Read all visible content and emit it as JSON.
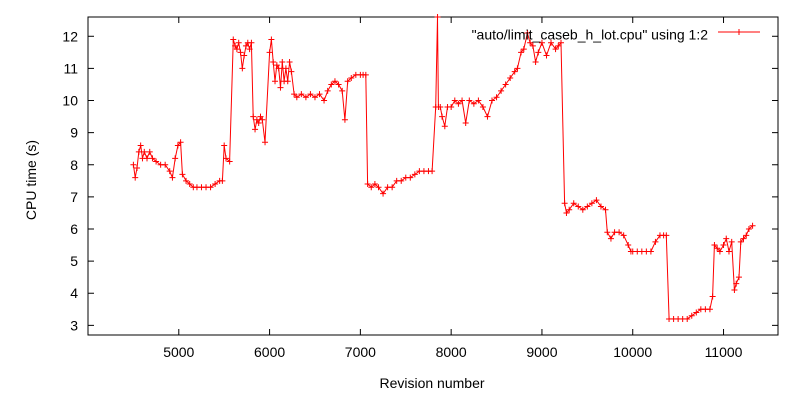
{
  "chart_data": {
    "type": "line",
    "title": "",
    "xlabel": "Revision number",
    "ylabel": "CPU time (s)",
    "xlim": [
      4000,
      11600
    ],
    "ylim": [
      2.7,
      12.6
    ],
    "x_ticks": [
      5000,
      6000,
      7000,
      8000,
      9000,
      10000,
      11000
    ],
    "y_ticks": [
      3,
      4,
      5,
      6,
      7,
      8,
      9,
      10,
      11,
      12
    ],
    "grid": false,
    "legend_position": "top-right",
    "series": [
      {
        "name": "\"auto/limit_caseb_h_lot.cpu\" using 1:2",
        "color": "#ff0000",
        "marker": "plus",
        "points": [
          [
            4500,
            8.0
          ],
          [
            4520,
            7.6
          ],
          [
            4540,
            7.9
          ],
          [
            4560,
            8.4
          ],
          [
            4580,
            8.6
          ],
          [
            4600,
            8.2
          ],
          [
            4620,
            8.4
          ],
          [
            4650,
            8.2
          ],
          [
            4680,
            8.4
          ],
          [
            4710,
            8.2
          ],
          [
            4750,
            8.1
          ],
          [
            4800,
            8.0
          ],
          [
            4850,
            8.0
          ],
          [
            4900,
            7.8
          ],
          [
            4930,
            7.6
          ],
          [
            4960,
            8.2
          ],
          [
            4990,
            8.6
          ],
          [
            5020,
            8.7
          ],
          [
            5040,
            7.7
          ],
          [
            5080,
            7.5
          ],
          [
            5120,
            7.4
          ],
          [
            5160,
            7.3
          ],
          [
            5200,
            7.3
          ],
          [
            5250,
            7.3
          ],
          [
            5300,
            7.3
          ],
          [
            5350,
            7.3
          ],
          [
            5400,
            7.4
          ],
          [
            5450,
            7.5
          ],
          [
            5480,
            7.5
          ],
          [
            5500,
            8.6
          ],
          [
            5520,
            8.2
          ],
          [
            5560,
            8.1
          ],
          [
            5600,
            11.9
          ],
          [
            5620,
            11.7
          ],
          [
            5640,
            11.6
          ],
          [
            5660,
            11.8
          ],
          [
            5680,
            11.5
          ],
          [
            5700,
            11.0
          ],
          [
            5720,
            11.4
          ],
          [
            5740,
            11.7
          ],
          [
            5760,
            11.8
          ],
          [
            5780,
            11.6
          ],
          [
            5800,
            11.8
          ],
          [
            5820,
            9.5
          ],
          [
            5840,
            9.1
          ],
          [
            5860,
            9.4
          ],
          [
            5880,
            9.3
          ],
          [
            5900,
            9.5
          ],
          [
            5920,
            9.4
          ],
          [
            5950,
            8.7
          ],
          [
            6000,
            11.5
          ],
          [
            6020,
            11.9
          ],
          [
            6040,
            11.2
          ],
          [
            6060,
            10.6
          ],
          [
            6080,
            11.1
          ],
          [
            6100,
            11.0
          ],
          [
            6120,
            10.4
          ],
          [
            6140,
            11.2
          ],
          [
            6160,
            10.6
          ],
          [
            6180,
            11.0
          ],
          [
            6200,
            10.6
          ],
          [
            6220,
            11.2
          ],
          [
            6240,
            10.9
          ],
          [
            6270,
            10.2
          ],
          [
            6300,
            10.1
          ],
          [
            6350,
            10.2
          ],
          [
            6400,
            10.1
          ],
          [
            6450,
            10.2
          ],
          [
            6500,
            10.1
          ],
          [
            6550,
            10.2
          ],
          [
            6600,
            10.0
          ],
          [
            6640,
            10.3
          ],
          [
            6680,
            10.5
          ],
          [
            6720,
            10.6
          ],
          [
            6760,
            10.5
          ],
          [
            6800,
            10.3
          ],
          [
            6830,
            9.4
          ],
          [
            6860,
            10.6
          ],
          [
            6900,
            10.7
          ],
          [
            6950,
            10.8
          ],
          [
            7000,
            10.8
          ],
          [
            7030,
            10.8
          ],
          [
            7060,
            10.8
          ],
          [
            7080,
            7.4
          ],
          [
            7120,
            7.3
          ],
          [
            7160,
            7.4
          ],
          [
            7200,
            7.3
          ],
          [
            7250,
            7.1
          ],
          [
            7300,
            7.3
          ],
          [
            7350,
            7.3
          ],
          [
            7400,
            7.5
          ],
          [
            7450,
            7.5
          ],
          [
            7500,
            7.6
          ],
          [
            7550,
            7.6
          ],
          [
            7600,
            7.7
          ],
          [
            7650,
            7.8
          ],
          [
            7700,
            7.8
          ],
          [
            7750,
            7.8
          ],
          [
            7790,
            7.8
          ],
          [
            7830,
            9.8
          ],
          [
            7850,
            12.6
          ],
          [
            7860,
            9.8
          ],
          [
            7880,
            9.8
          ],
          [
            7900,
            9.5
          ],
          [
            7930,
            9.2
          ],
          [
            7960,
            9.8
          ],
          [
            8000,
            9.8
          ],
          [
            8040,
            10.0
          ],
          [
            8080,
            9.9
          ],
          [
            8120,
            10.0
          ],
          [
            8160,
            9.3
          ],
          [
            8200,
            10.0
          ],
          [
            8250,
            9.9
          ],
          [
            8300,
            10.0
          ],
          [
            8350,
            9.8
          ],
          [
            8400,
            9.5
          ],
          [
            8450,
            10.0
          ],
          [
            8500,
            10.1
          ],
          [
            8550,
            10.3
          ],
          [
            8600,
            10.5
          ],
          [
            8650,
            10.7
          ],
          [
            8700,
            10.9
          ],
          [
            8730,
            11.0
          ],
          [
            8770,
            11.5
          ],
          [
            8800,
            11.6
          ],
          [
            8840,
            12.1
          ],
          [
            8870,
            11.8
          ],
          [
            8900,
            11.7
          ],
          [
            8930,
            11.2
          ],
          [
            8960,
            11.5
          ],
          [
            9000,
            11.8
          ],
          [
            9050,
            11.4
          ],
          [
            9100,
            11.8
          ],
          [
            9150,
            11.6
          ],
          [
            9180,
            11.7
          ],
          [
            9210,
            11.8
          ],
          [
            9250,
            6.8
          ],
          [
            9270,
            6.5
          ],
          [
            9300,
            6.6
          ],
          [
            9350,
            6.8
          ],
          [
            9400,
            6.7
          ],
          [
            9450,
            6.6
          ],
          [
            9500,
            6.7
          ],
          [
            9550,
            6.8
          ],
          [
            9600,
            6.9
          ],
          [
            9650,
            6.7
          ],
          [
            9700,
            6.6
          ],
          [
            9720,
            5.9
          ],
          [
            9760,
            5.7
          ],
          [
            9800,
            5.9
          ],
          [
            9850,
            5.9
          ],
          [
            9900,
            5.8
          ],
          [
            9950,
            5.5
          ],
          [
            9980,
            5.3
          ],
          [
            10000,
            5.3
          ],
          [
            10050,
            5.3
          ],
          [
            10100,
            5.3
          ],
          [
            10150,
            5.3
          ],
          [
            10200,
            5.3
          ],
          [
            10250,
            5.6
          ],
          [
            10300,
            5.8
          ],
          [
            10340,
            5.8
          ],
          [
            10370,
            5.8
          ],
          [
            10400,
            3.2
          ],
          [
            10450,
            3.2
          ],
          [
            10500,
            3.2
          ],
          [
            10550,
            3.2
          ],
          [
            10600,
            3.2
          ],
          [
            10650,
            3.3
          ],
          [
            10700,
            3.4
          ],
          [
            10750,
            3.5
          ],
          [
            10800,
            3.5
          ],
          [
            10850,
            3.5
          ],
          [
            10880,
            3.9
          ],
          [
            10900,
            5.5
          ],
          [
            10930,
            5.4
          ],
          [
            10960,
            5.3
          ],
          [
            11000,
            5.5
          ],
          [
            11030,
            5.7
          ],
          [
            11060,
            5.3
          ],
          [
            11090,
            5.6
          ],
          [
            11120,
            4.1
          ],
          [
            11140,
            4.3
          ],
          [
            11170,
            4.5
          ],
          [
            11190,
            5.6
          ],
          [
            11220,
            5.7
          ],
          [
            11250,
            5.8
          ],
          [
            11280,
            6.0
          ],
          [
            11320,
            6.1
          ]
        ]
      }
    ]
  }
}
